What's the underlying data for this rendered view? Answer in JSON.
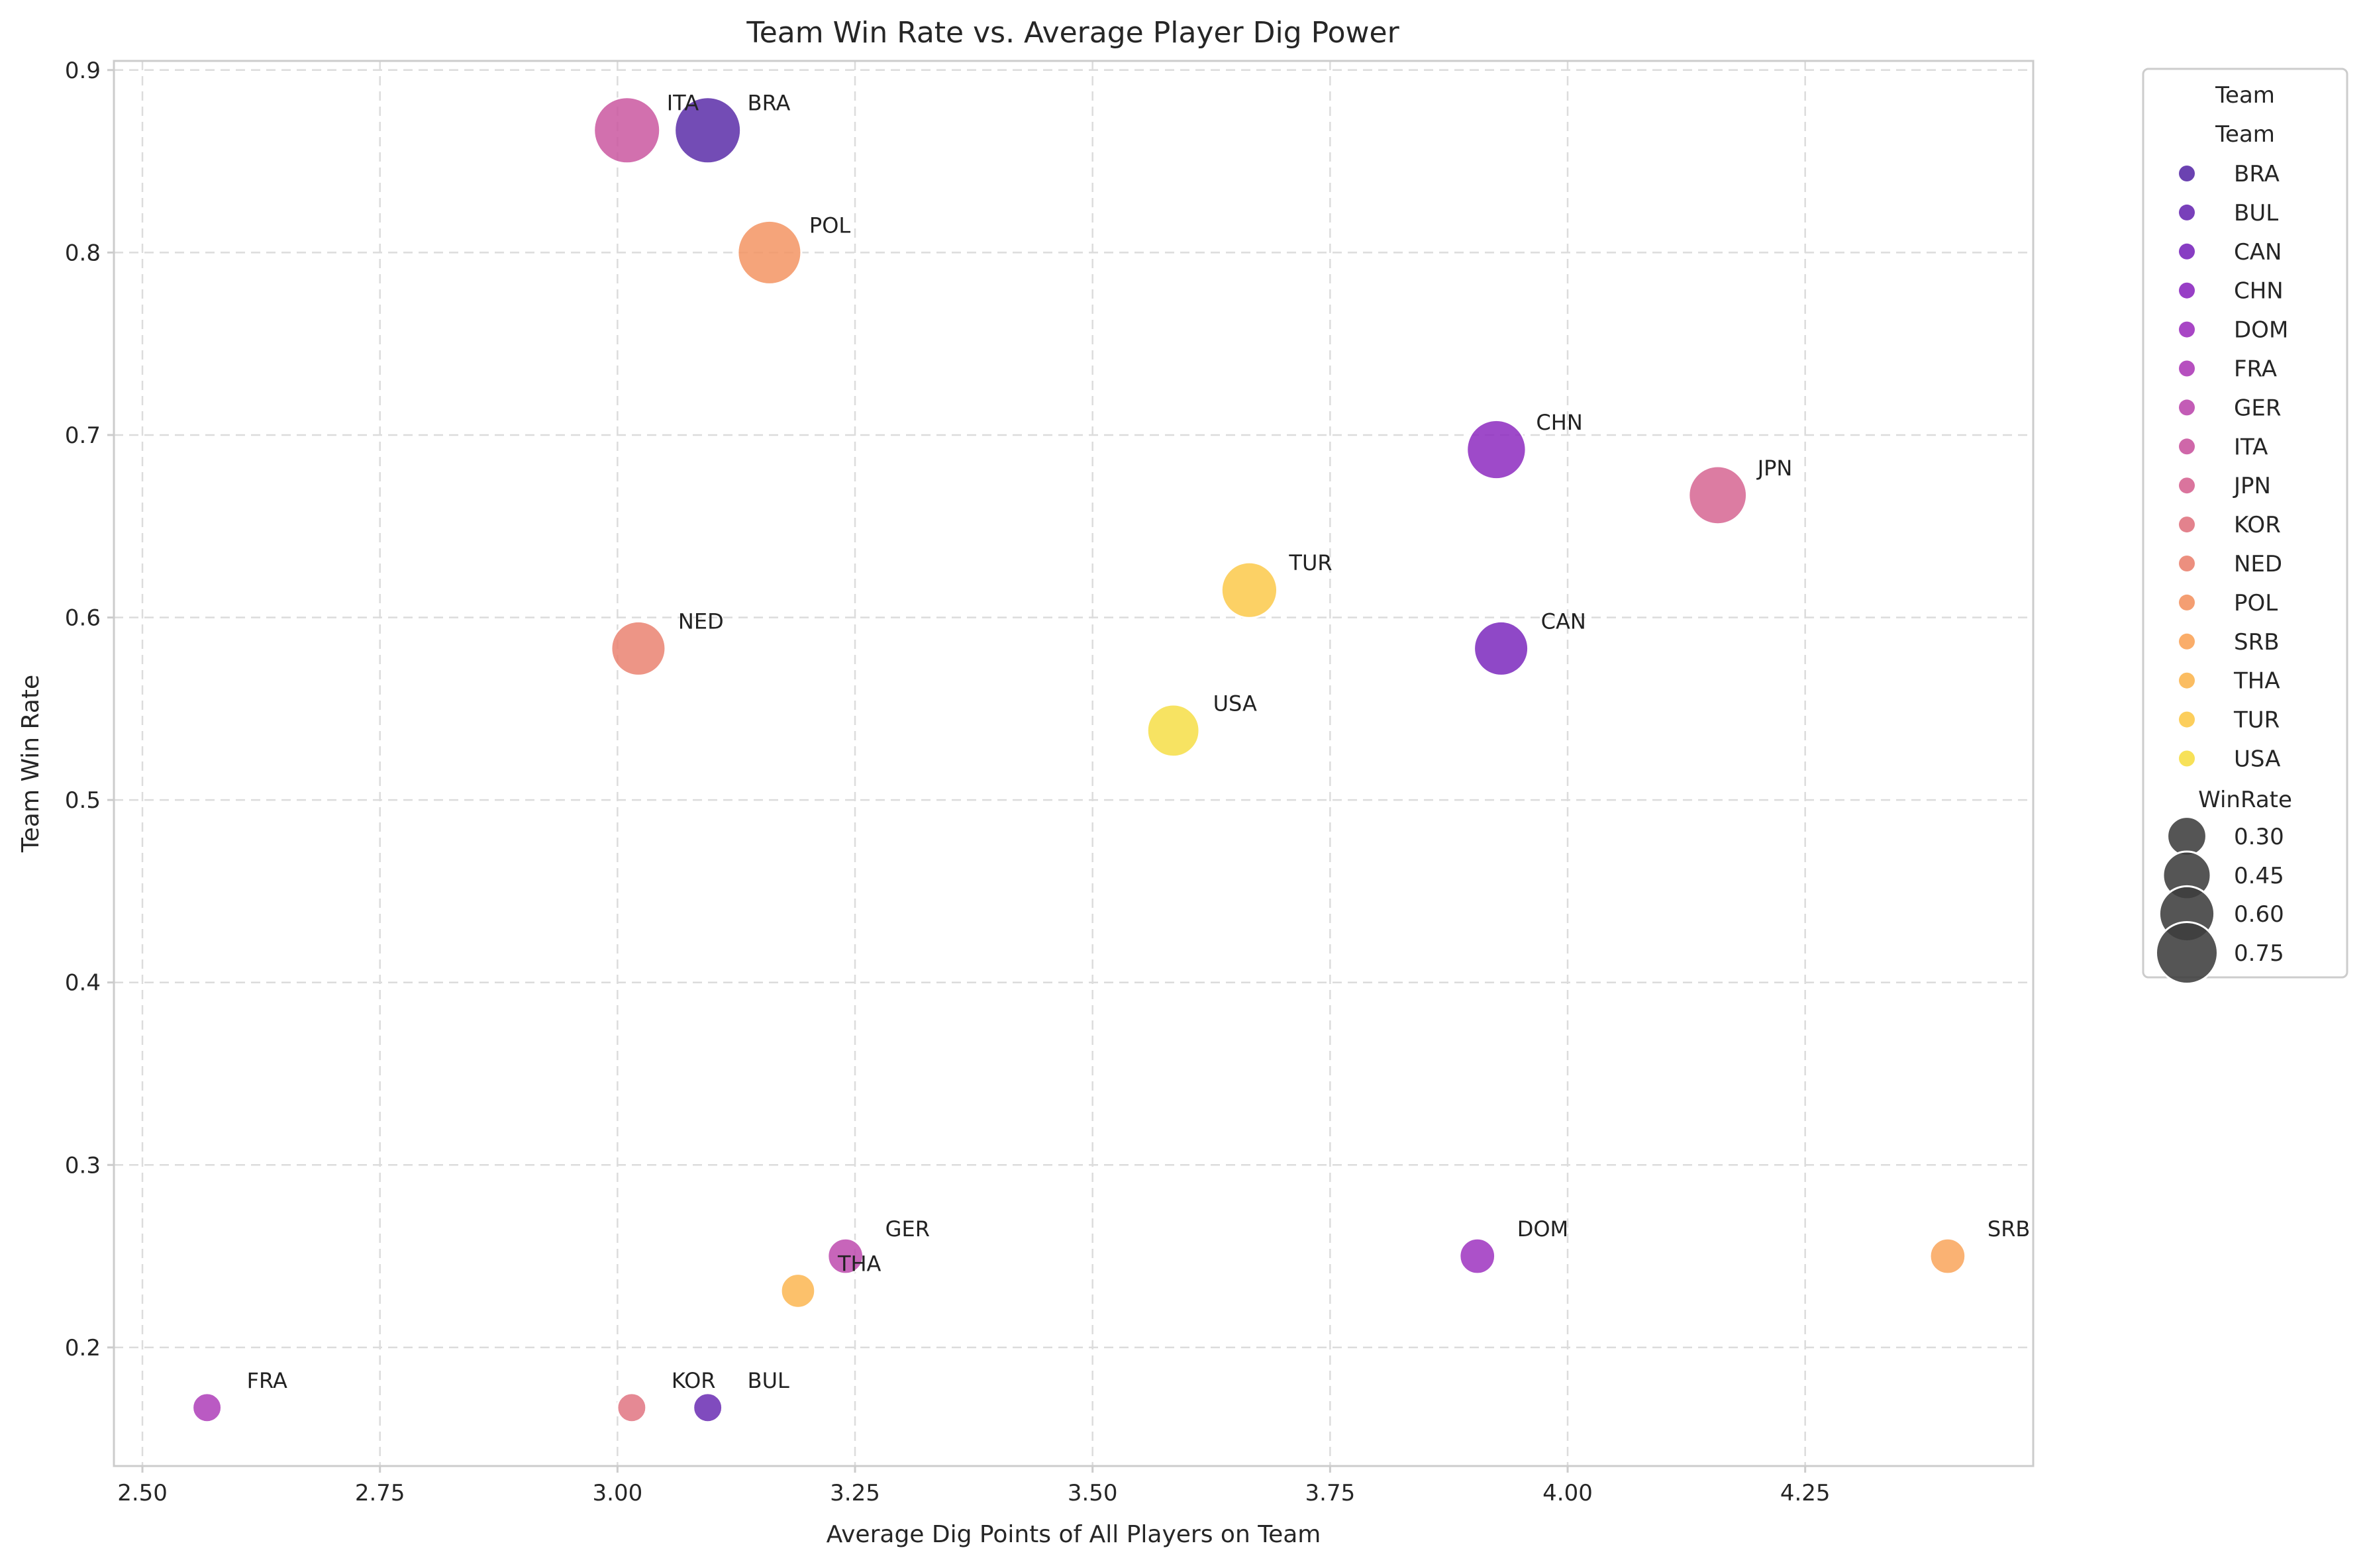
{
  "chart_data": {
    "type": "scatter",
    "title": "Team Win Rate vs. Average Player Dig Power",
    "xlabel": "Average Dig Points of All Players on Team",
    "ylabel": "Team Win Rate",
    "xlim": [
      2.47,
      4.49
    ],
    "ylim": [
      0.135,
      0.905
    ],
    "xticks": [
      "2.50",
      "2.75",
      "3.00",
      "3.25",
      "3.50",
      "3.75",
      "4.00",
      "4.25"
    ],
    "yticks": [
      "0.2",
      "0.3",
      "0.4",
      "0.5",
      "0.6",
      "0.7",
      "0.8",
      "0.9"
    ],
    "grid": true,
    "legend_placement": "outside-right",
    "points": [
      {
        "team": "BRA",
        "x": 3.095,
        "y": 0.867,
        "color": "#5b2da8"
      },
      {
        "team": "BUL",
        "x": 3.095,
        "y": 0.167,
        "color": "#6a2bb3"
      },
      {
        "team": "CAN",
        "x": 3.93,
        "y": 0.583,
        "color": "#7b28bd"
      },
      {
        "team": "CHN",
        "x": 3.925,
        "y": 0.692,
        "color": "#8d2ac0"
      },
      {
        "team": "DOM",
        "x": 3.905,
        "y": 0.25,
        "color": "#9e32bf"
      },
      {
        "team": "FRA",
        "x": 2.568,
        "y": 0.167,
        "color": "#ae3db8"
      },
      {
        "team": "GER",
        "x": 3.24,
        "y": 0.25,
        "color": "#bd4aae"
      },
      {
        "team": "ITA",
        "x": 3.01,
        "y": 0.867,
        "color": "#ca57a0"
      },
      {
        "team": "JPN",
        "x": 4.158,
        "y": 0.667,
        "color": "#d66592"
      },
      {
        "team": "KOR",
        "x": 3.015,
        "y": 0.167,
        "color": "#e07481"
      },
      {
        "team": "NED",
        "x": 3.022,
        "y": 0.583,
        "color": "#ea8371"
      },
      {
        "team": "POL",
        "x": 3.16,
        "y": 0.8,
        "color": "#f39463"
      },
      {
        "team": "SRB",
        "x": 4.4,
        "y": 0.25,
        "color": "#f9a45a"
      },
      {
        "team": "THA",
        "x": 3.19,
        "y": 0.231,
        "color": "#fbb651"
      },
      {
        "team": "TUR",
        "x": 3.665,
        "y": 0.615,
        "color": "#fcc94a"
      },
      {
        "team": "USA",
        "x": 3.585,
        "y": 0.538,
        "color": "#f6de46"
      }
    ],
    "legend": {
      "title": "Team",
      "hue_title": "Team",
      "size_title": "WinRate",
      "size_entries": [
        "0.30",
        "0.45",
        "0.60",
        "0.75"
      ],
      "size_values": [
        0.3,
        0.45,
        0.6,
        0.75
      ],
      "size_color": "#3d3d3d"
    }
  }
}
